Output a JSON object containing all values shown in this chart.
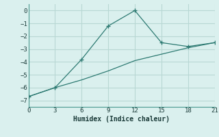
{
  "line1_x": [
    0,
    3,
    6,
    9,
    12,
    15,
    18,
    21
  ],
  "line1_y": [
    -6.7,
    -6.0,
    -3.8,
    -1.2,
    0.0,
    -2.5,
    -2.8,
    -2.5
  ],
  "line2_x": [
    0,
    3,
    6,
    9,
    12,
    15,
    18,
    21
  ],
  "line2_y": [
    -6.7,
    -6.0,
    -5.4,
    -4.7,
    -3.9,
    -3.4,
    -2.9,
    -2.5
  ],
  "line_color": "#2d7a72",
  "bg_color": "#daf0ee",
  "grid_color": "#b8d8d4",
  "xlabel": "Humidex (Indice chaleur)",
  "ylim": [
    -7.5,
    0.5
  ],
  "xlim": [
    0,
    21
  ],
  "xticks": [
    0,
    3,
    6,
    9,
    12,
    15,
    18,
    21
  ],
  "yticks": [
    0,
    -1,
    -2,
    -3,
    -4,
    -5,
    -6,
    -7
  ]
}
